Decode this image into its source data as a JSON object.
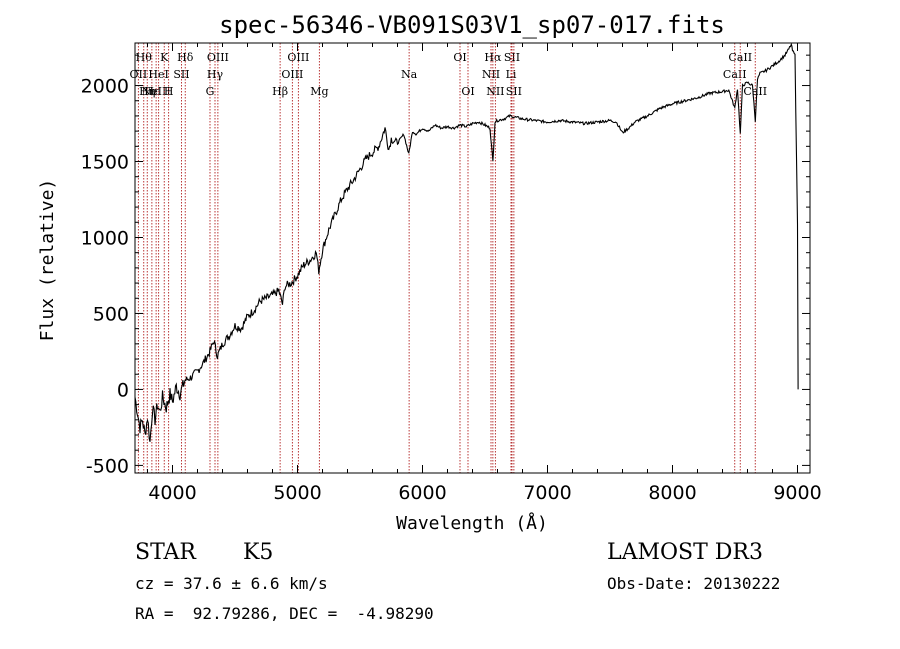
{
  "chart_data": {
    "type": "line",
    "title": "spec-56346-VB091S03V1_sp07-017.fits",
    "xlabel": "Wavelength (Å)",
    "ylabel": "Flux (relative)",
    "xlim": [
      3700,
      9100
    ],
    "ylim": [
      -550,
      2280
    ],
    "xticks": [
      4000,
      5000,
      6000,
      7000,
      8000,
      9000
    ],
    "yticks": [
      -500,
      0,
      500,
      1000,
      1500,
      2000
    ],
    "series": [
      {
        "name": "spectrum",
        "points": [
          [
            3700,
            -50
          ],
          [
            3720,
            -150
          ],
          [
            3740,
            -250
          ],
          [
            3760,
            -200
          ],
          [
            3780,
            -300
          ],
          [
            3800,
            -180
          ],
          [
            3820,
            -350
          ],
          [
            3840,
            -120
          ],
          [
            3860,
            -200
          ],
          [
            3880,
            -100
          ],
          [
            3900,
            -150
          ],
          [
            3920,
            -50
          ],
          [
            3950,
            -120
          ],
          [
            3980,
            -30
          ],
          [
            4000,
            -80
          ],
          [
            4030,
            20
          ],
          [
            4060,
            -30
          ],
          [
            4100,
            60
          ],
          [
            4150,
            80
          ],
          [
            4200,
            120
          ],
          [
            4250,
            180
          ],
          [
            4300,
            250
          ],
          [
            4330,
            320
          ],
          [
            4360,
            220
          ],
          [
            4400,
            300
          ],
          [
            4450,
            350
          ],
          [
            4500,
            420
          ],
          [
            4550,
            400
          ],
          [
            4600,
            480
          ],
          [
            4650,
            520
          ],
          [
            4700,
            580
          ],
          [
            4750,
            600
          ],
          [
            4800,
            620
          ],
          [
            4850,
            650
          ],
          [
            4880,
            560
          ],
          [
            4900,
            680
          ],
          [
            4950,
            700
          ],
          [
            5000,
            750
          ],
          [
            5050,
            820
          ],
          [
            5100,
            850
          ],
          [
            5150,
            900
          ],
          [
            5170,
            780
          ],
          [
            5200,
            920
          ],
          [
            5250,
            1050
          ],
          [
            5300,
            1150
          ],
          [
            5350,
            1250
          ],
          [
            5400,
            1320
          ],
          [
            5450,
            1380
          ],
          [
            5500,
            1450
          ],
          [
            5550,
            1520
          ],
          [
            5600,
            1560
          ],
          [
            5650,
            1600
          ],
          [
            5700,
            1720
          ],
          [
            5730,
            1580
          ],
          [
            5750,
            1650
          ],
          [
            5800,
            1620
          ],
          [
            5850,
            1680
          ],
          [
            5890,
            1550
          ],
          [
            5920,
            1700
          ],
          [
            5950,
            1680
          ],
          [
            6000,
            1720
          ],
          [
            6050,
            1700
          ],
          [
            6100,
            1740
          ],
          [
            6150,
            1720
          ],
          [
            6200,
            1730
          ],
          [
            6250,
            1720
          ],
          [
            6300,
            1740
          ],
          [
            6350,
            1730
          ],
          [
            6400,
            1750
          ],
          [
            6450,
            1760
          ],
          [
            6500,
            1740
          ],
          [
            6540,
            1720
          ],
          [
            6563,
            1500
          ],
          [
            6580,
            1760
          ],
          [
            6600,
            1770
          ],
          [
            6650,
            1780
          ],
          [
            6700,
            1800
          ],
          [
            6750,
            1790
          ],
          [
            6800,
            1780
          ],
          [
            6900,
            1770
          ],
          [
            7000,
            1760
          ],
          [
            7100,
            1770
          ],
          [
            7200,
            1760
          ],
          [
            7300,
            1750
          ],
          [
            7400,
            1760
          ],
          [
            7500,
            1770
          ],
          [
            7550,
            1760
          ],
          [
            7600,
            1690
          ],
          [
            7650,
            1720
          ],
          [
            7700,
            1760
          ],
          [
            7800,
            1800
          ],
          [
            7900,
            1850
          ],
          [
            8000,
            1880
          ],
          [
            8100,
            1900
          ],
          [
            8200,
            1920
          ],
          [
            8300,
            1950
          ],
          [
            8400,
            1960
          ],
          [
            8450,
            1970
          ],
          [
            8498,
            1850
          ],
          [
            8520,
            1980
          ],
          [
            8542,
            1680
          ],
          [
            8560,
            2000
          ],
          [
            8600,
            2020
          ],
          [
            8640,
            2000
          ],
          [
            8662,
            1770
          ],
          [
            8680,
            2040
          ],
          [
            8700,
            2080
          ],
          [
            8750,
            2100
          ],
          [
            8800,
            2130
          ],
          [
            8850,
            2160
          ],
          [
            8900,
            2200
          ],
          [
            8930,
            2240
          ],
          [
            8950,
            2270
          ],
          [
            8960,
            2230
          ],
          [
            8980,
            2200
          ],
          [
            9000,
            1080
          ],
          [
            9005,
            0
          ]
        ]
      }
    ],
    "line_markers": [
      {
        "wl": 3727,
        "label": "OII",
        "row": 1
      },
      {
        "wl": 3770,
        "label": "Hθ",
        "row": 0
      },
      {
        "wl": 3798,
        "label": "Hη",
        "row": 2
      },
      {
        "wl": 3835,
        "label": "Hε",
        "row": 2
      },
      {
        "wl": 3869,
        "label": "NeIII",
        "row": 2
      },
      {
        "wl": 3889,
        "label": "HeI",
        "row": 1
      },
      {
        "wl": 3934,
        "label": "K",
        "row": 0
      },
      {
        "wl": 3969,
        "label": "H",
        "row": 2
      },
      {
        "wl": 4072,
        "label": "SII",
        "row": 1
      },
      {
        "wl": 4102,
        "label": "Hδ",
        "row": 0
      },
      {
        "wl": 4300,
        "label": "G",
        "row": 2
      },
      {
        "wl": 4340,
        "label": "Hγ",
        "row": 1
      },
      {
        "wl": 4363,
        "label": "OIII",
        "row": 0
      },
      {
        "wl": 4861,
        "label": "Hβ",
        "row": 2
      },
      {
        "wl": 4959,
        "label": "OIII",
        "row": 1
      },
      {
        "wl": 5007,
        "label": "OIII",
        "row": 0
      },
      {
        "wl": 5175,
        "label": "Mg",
        "row": 2
      },
      {
        "wl": 5893,
        "label": "Na",
        "row": 1
      },
      {
        "wl": 6300,
        "label": "OI",
        "row": 0
      },
      {
        "wl": 6364,
        "label": "OI",
        "row": 2
      },
      {
        "wl": 6548,
        "label": "NII",
        "row": 1
      },
      {
        "wl": 6563,
        "label": "Hα",
        "row": 0
      },
      {
        "wl": 6583,
        "label": "NII",
        "row": 2
      },
      {
        "wl": 6708,
        "label": "Li",
        "row": 1
      },
      {
        "wl": 6716,
        "label": "SII",
        "row": 0
      },
      {
        "wl": 6731,
        "label": "SII",
        "row": 2
      },
      {
        "wl": 8498,
        "label": "CaII",
        "row": 1
      },
      {
        "wl": 8542,
        "label": "CaII",
        "row": 0
      },
      {
        "wl": 8662,
        "label": "CaII",
        "row": 2
      }
    ]
  },
  "info": {
    "object_type": "STAR",
    "subclass": "K5",
    "survey": "LAMOST DR3",
    "cz": "cz = 37.6 ± 6.6 km/s",
    "obs_date": "Obs-Date: 20130222",
    "radec": "RA =  92.79286, DEC =  -4.98290"
  },
  "colors": {
    "marker": "#b22222",
    "axis": "#000000"
  }
}
